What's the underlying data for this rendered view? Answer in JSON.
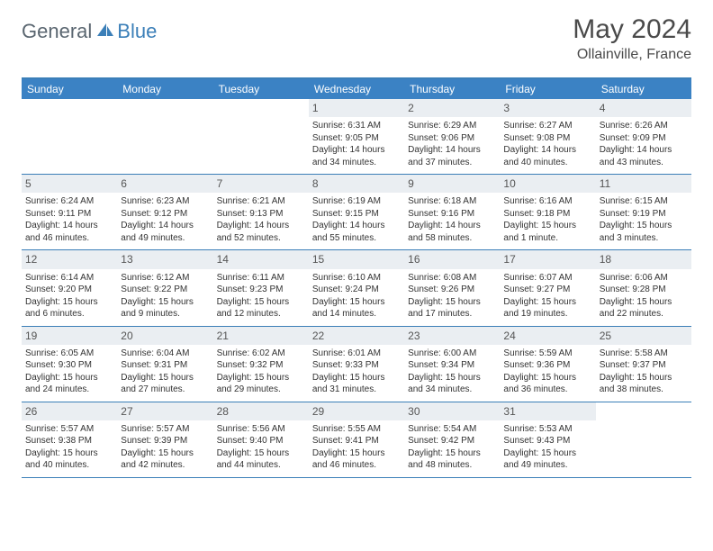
{
  "logo": {
    "general": "General",
    "blue": "Blue"
  },
  "title": "May 2024",
  "location": "Ollainville, France",
  "colors": {
    "header_bar": "#3b82c4",
    "accent_line": "#3b7fb8",
    "daynum_bg": "#eaeef2",
    "text": "#333333",
    "logo_gray": "#5a6670",
    "logo_blue": "#3b7fb8"
  },
  "weekdays": [
    "Sunday",
    "Monday",
    "Tuesday",
    "Wednesday",
    "Thursday",
    "Friday",
    "Saturday"
  ],
  "weeks": [
    [
      {
        "n": "",
        "sr": "",
        "ss": "",
        "dl": ""
      },
      {
        "n": "",
        "sr": "",
        "ss": "",
        "dl": ""
      },
      {
        "n": "",
        "sr": "",
        "ss": "",
        "dl": ""
      },
      {
        "n": "1",
        "sr": "Sunrise: 6:31 AM",
        "ss": "Sunset: 9:05 PM",
        "dl": "Daylight: 14 hours and 34 minutes."
      },
      {
        "n": "2",
        "sr": "Sunrise: 6:29 AM",
        "ss": "Sunset: 9:06 PM",
        "dl": "Daylight: 14 hours and 37 minutes."
      },
      {
        "n": "3",
        "sr": "Sunrise: 6:27 AM",
        "ss": "Sunset: 9:08 PM",
        "dl": "Daylight: 14 hours and 40 minutes."
      },
      {
        "n": "4",
        "sr": "Sunrise: 6:26 AM",
        "ss": "Sunset: 9:09 PM",
        "dl": "Daylight: 14 hours and 43 minutes."
      }
    ],
    [
      {
        "n": "5",
        "sr": "Sunrise: 6:24 AM",
        "ss": "Sunset: 9:11 PM",
        "dl": "Daylight: 14 hours and 46 minutes."
      },
      {
        "n": "6",
        "sr": "Sunrise: 6:23 AM",
        "ss": "Sunset: 9:12 PM",
        "dl": "Daylight: 14 hours and 49 minutes."
      },
      {
        "n": "7",
        "sr": "Sunrise: 6:21 AM",
        "ss": "Sunset: 9:13 PM",
        "dl": "Daylight: 14 hours and 52 minutes."
      },
      {
        "n": "8",
        "sr": "Sunrise: 6:19 AM",
        "ss": "Sunset: 9:15 PM",
        "dl": "Daylight: 14 hours and 55 minutes."
      },
      {
        "n": "9",
        "sr": "Sunrise: 6:18 AM",
        "ss": "Sunset: 9:16 PM",
        "dl": "Daylight: 14 hours and 58 minutes."
      },
      {
        "n": "10",
        "sr": "Sunrise: 6:16 AM",
        "ss": "Sunset: 9:18 PM",
        "dl": "Daylight: 15 hours and 1 minute."
      },
      {
        "n": "11",
        "sr": "Sunrise: 6:15 AM",
        "ss": "Sunset: 9:19 PM",
        "dl": "Daylight: 15 hours and 3 minutes."
      }
    ],
    [
      {
        "n": "12",
        "sr": "Sunrise: 6:14 AM",
        "ss": "Sunset: 9:20 PM",
        "dl": "Daylight: 15 hours and 6 minutes."
      },
      {
        "n": "13",
        "sr": "Sunrise: 6:12 AM",
        "ss": "Sunset: 9:22 PM",
        "dl": "Daylight: 15 hours and 9 minutes."
      },
      {
        "n": "14",
        "sr": "Sunrise: 6:11 AM",
        "ss": "Sunset: 9:23 PM",
        "dl": "Daylight: 15 hours and 12 minutes."
      },
      {
        "n": "15",
        "sr": "Sunrise: 6:10 AM",
        "ss": "Sunset: 9:24 PM",
        "dl": "Daylight: 15 hours and 14 minutes."
      },
      {
        "n": "16",
        "sr": "Sunrise: 6:08 AM",
        "ss": "Sunset: 9:26 PM",
        "dl": "Daylight: 15 hours and 17 minutes."
      },
      {
        "n": "17",
        "sr": "Sunrise: 6:07 AM",
        "ss": "Sunset: 9:27 PM",
        "dl": "Daylight: 15 hours and 19 minutes."
      },
      {
        "n": "18",
        "sr": "Sunrise: 6:06 AM",
        "ss": "Sunset: 9:28 PM",
        "dl": "Daylight: 15 hours and 22 minutes."
      }
    ],
    [
      {
        "n": "19",
        "sr": "Sunrise: 6:05 AM",
        "ss": "Sunset: 9:30 PM",
        "dl": "Daylight: 15 hours and 24 minutes."
      },
      {
        "n": "20",
        "sr": "Sunrise: 6:04 AM",
        "ss": "Sunset: 9:31 PM",
        "dl": "Daylight: 15 hours and 27 minutes."
      },
      {
        "n": "21",
        "sr": "Sunrise: 6:02 AM",
        "ss": "Sunset: 9:32 PM",
        "dl": "Daylight: 15 hours and 29 minutes."
      },
      {
        "n": "22",
        "sr": "Sunrise: 6:01 AM",
        "ss": "Sunset: 9:33 PM",
        "dl": "Daylight: 15 hours and 31 minutes."
      },
      {
        "n": "23",
        "sr": "Sunrise: 6:00 AM",
        "ss": "Sunset: 9:34 PM",
        "dl": "Daylight: 15 hours and 34 minutes."
      },
      {
        "n": "24",
        "sr": "Sunrise: 5:59 AM",
        "ss": "Sunset: 9:36 PM",
        "dl": "Daylight: 15 hours and 36 minutes."
      },
      {
        "n": "25",
        "sr": "Sunrise: 5:58 AM",
        "ss": "Sunset: 9:37 PM",
        "dl": "Daylight: 15 hours and 38 minutes."
      }
    ],
    [
      {
        "n": "26",
        "sr": "Sunrise: 5:57 AM",
        "ss": "Sunset: 9:38 PM",
        "dl": "Daylight: 15 hours and 40 minutes."
      },
      {
        "n": "27",
        "sr": "Sunrise: 5:57 AM",
        "ss": "Sunset: 9:39 PM",
        "dl": "Daylight: 15 hours and 42 minutes."
      },
      {
        "n": "28",
        "sr": "Sunrise: 5:56 AM",
        "ss": "Sunset: 9:40 PM",
        "dl": "Daylight: 15 hours and 44 minutes."
      },
      {
        "n": "29",
        "sr": "Sunrise: 5:55 AM",
        "ss": "Sunset: 9:41 PM",
        "dl": "Daylight: 15 hours and 46 minutes."
      },
      {
        "n": "30",
        "sr": "Sunrise: 5:54 AM",
        "ss": "Sunset: 9:42 PM",
        "dl": "Daylight: 15 hours and 48 minutes."
      },
      {
        "n": "31",
        "sr": "Sunrise: 5:53 AM",
        "ss": "Sunset: 9:43 PM",
        "dl": "Daylight: 15 hours and 49 minutes."
      },
      {
        "n": "",
        "sr": "",
        "ss": "",
        "dl": ""
      }
    ]
  ]
}
